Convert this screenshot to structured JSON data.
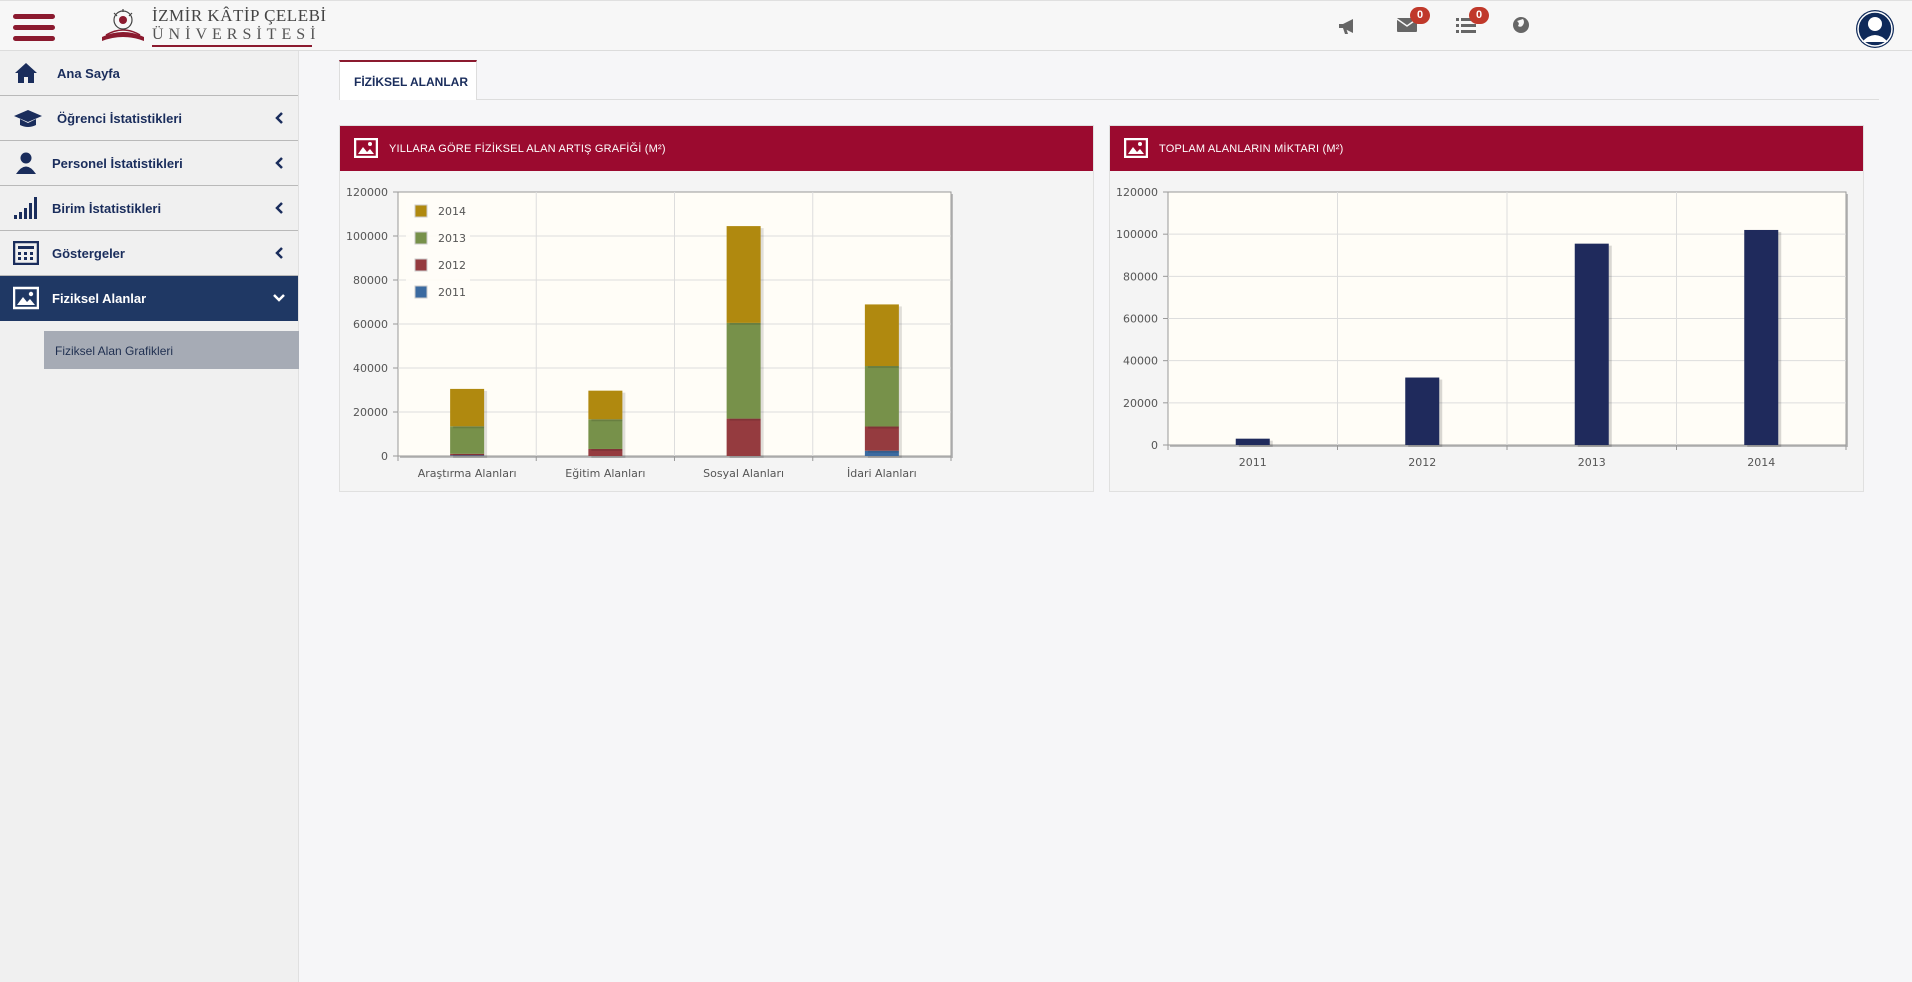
{
  "header": {
    "logo_line1": "İZMİR KÂTİP ÇELEBİ",
    "logo_line2": "ÜNİVERSİTESİ",
    "messages_count": "0",
    "tasks_count": "0",
    "icons": [
      "megaphone-icon",
      "envelope-icon",
      "list-icon",
      "globe-icon",
      "user-avatar-icon"
    ]
  },
  "sidebar": {
    "items": [
      {
        "label": "Ana Sayfa",
        "icon": "home-icon"
      },
      {
        "label": "Öğrenci İstatistikleri",
        "icon": "graduation-cap-icon"
      },
      {
        "label": "Personel İstatistikleri",
        "icon": "user-icon"
      },
      {
        "label": "Birim İstatistikleri",
        "icon": "signal-bars-icon"
      },
      {
        "label": "Göstergeler",
        "icon": "calculator-icon"
      },
      {
        "label": "Fiziksel Alanlar",
        "icon": "picture-icon"
      }
    ],
    "sub_items": [
      {
        "label": "Fiziksel Alan Grafikleri"
      }
    ]
  },
  "main": {
    "tab_label": "FİZİKSEL ALANLAR",
    "panel1_title": "YILLARA GÖRE FİZİKSEL ALAN ARTIŞ GRAFİĞİ (M²)",
    "panel2_title": "TOPLAM ALANLARIN MİKTARI (M²)"
  },
  "colors": {
    "brand": "#9b0a2f",
    "nav_active": "#1f3864",
    "series_2011": "#3b6aa0",
    "series_2012": "#953b3f",
    "series_2013": "#77914a",
    "series_2014": "#b0890f",
    "bar_total": "#1f2a5c"
  },
  "chart_data": [
    {
      "type": "bar",
      "stacked": true,
      "categories": [
        "Araştırma Alanları",
        "Eğitim Alanları",
        "Sosyal Alanları",
        "İdari Alanları"
      ],
      "series": [
        {
          "name": "2011",
          "values": [
            300,
            0,
            0,
            2400
          ]
        },
        {
          "name": "2012",
          "values": [
            700,
            3200,
            17000,
            11000
          ]
        },
        {
          "name": "2013",
          "values": [
            12500,
            13500,
            43500,
            27500
          ]
        },
        {
          "name": "2014",
          "values": [
            17000,
            13000,
            44000,
            28000
          ]
        }
      ],
      "ylim": [
        0,
        120000
      ],
      "yticks": [
        0,
        20000,
        40000,
        60000,
        80000,
        100000,
        120000
      ],
      "legend_position": "top-left",
      "legend_order": [
        "2014",
        "2013",
        "2012",
        "2011"
      ],
      "grid": true
    },
    {
      "type": "bar",
      "categories": [
        "2011",
        "2012",
        "2013",
        "2014"
      ],
      "values": [
        3000,
        32000,
        95500,
        102000
      ],
      "ylim": [
        0,
        120000
      ],
      "yticks": [
        0,
        20000,
        40000,
        60000,
        80000,
        100000,
        120000
      ],
      "grid": true
    }
  ]
}
